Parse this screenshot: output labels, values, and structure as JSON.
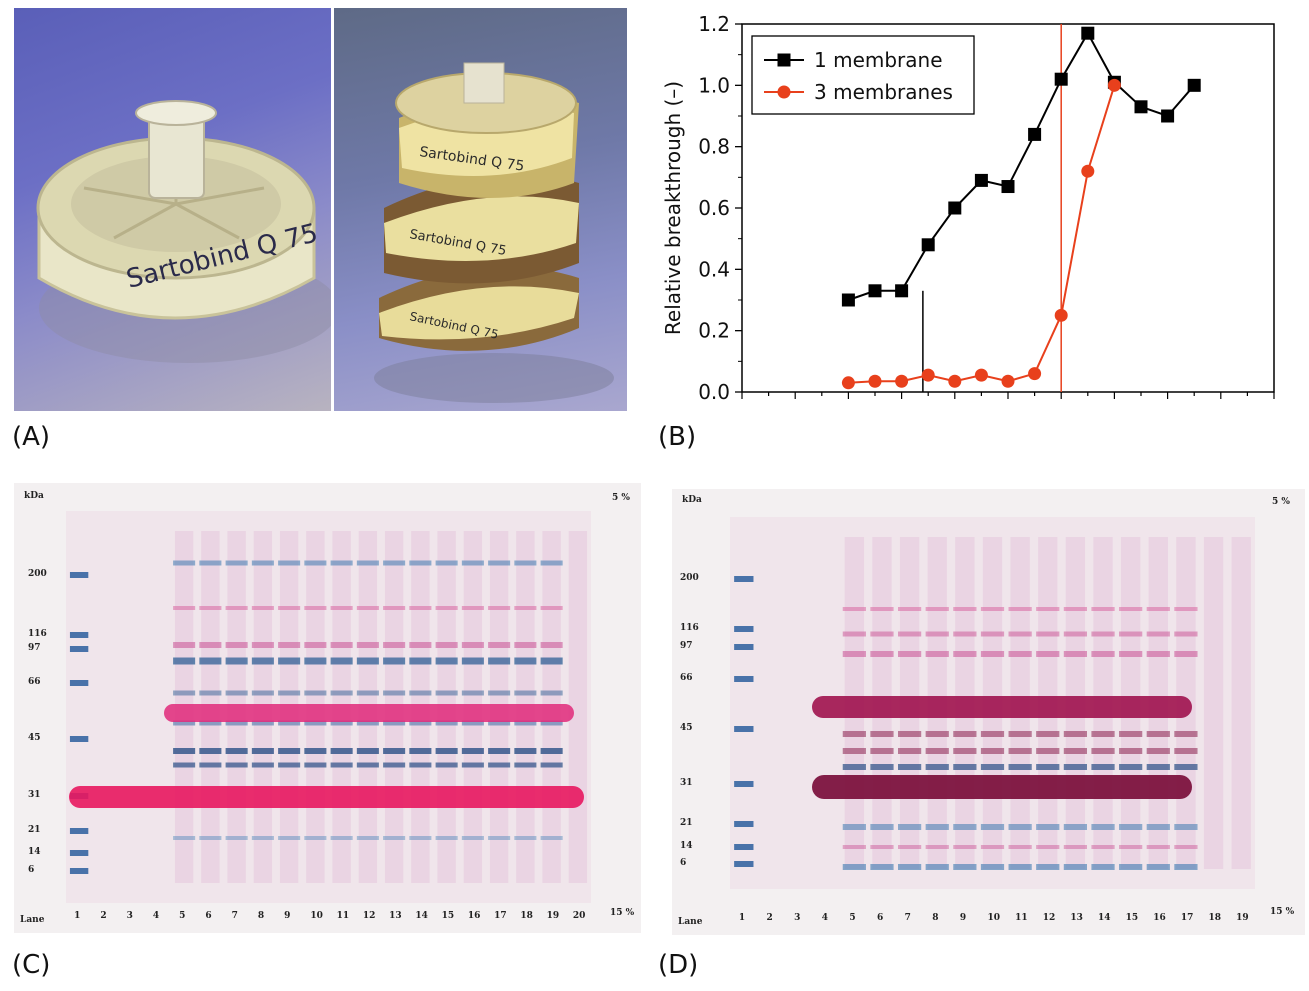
{
  "panels": {
    "a": {
      "label": "(A)",
      "product_text_left": "Sartobind Q 75",
      "product_text_right": [
        "Sartobind Q 75",
        "Sartobind Q 75",
        "Sartobind Q 75"
      ]
    },
    "b": {
      "label": "(B)"
    },
    "c": {
      "label": "(C)",
      "kda_label": "kDa",
      "top_pct": "5 %",
      "bottom_pct": "15 %",
      "lane_title": "Lane",
      "mw_markers": [
        "200",
        "116",
        "97",
        "66",
        "45",
        "31",
        "21",
        "14",
        "6"
      ],
      "lanes": [
        "1",
        "2",
        "3",
        "4",
        "5",
        "6",
        "7",
        "8",
        "9",
        "10",
        "11",
        "12",
        "13",
        "14",
        "15",
        "16",
        "17",
        "18",
        "19",
        "20"
      ]
    },
    "d": {
      "label": "(D)",
      "kda_label": "kDa",
      "top_pct": "5 %",
      "bottom_pct": "15 %",
      "lane_title": "Lane",
      "mw_markers": [
        "200",
        "116",
        "97",
        "66",
        "45",
        "31",
        "21",
        "14",
        "6"
      ],
      "lanes": [
        "1",
        "2",
        "3",
        "4",
        "5",
        "6",
        "7",
        "8",
        "9",
        "10",
        "11",
        "12",
        "13",
        "14",
        "15",
        "16",
        "17",
        "18",
        "19"
      ]
    }
  },
  "colors": {
    "series1": "#000000",
    "series2": "#e8401c",
    "gel_pink": "#d63f86",
    "gel_blue": "#2c5e9e"
  },
  "chart_data": {
    "type": "line",
    "title": "",
    "xlabel": "",
    "ylabel": "Relative breakthrough (–)",
    "ylim": [
      0,
      1.2
    ],
    "yticks": [
      "0.0",
      "0.2",
      "0.4",
      "0.6",
      "0.8",
      "1.0",
      "1.2"
    ],
    "xlim": [
      0,
      20
    ],
    "grid": false,
    "legend_position": "top-left",
    "vertical_lines": [
      {
        "x": 6.8,
        "color": "#000000"
      },
      {
        "x": 12.0,
        "color": "#e8401c"
      }
    ],
    "series": [
      {
        "name": "1 membrane",
        "marker": "square",
        "color": "#000000",
        "x": [
          4.0,
          5.0,
          6.0,
          7.0,
          8.0,
          9.0,
          10.0,
          11.0,
          12.0,
          13.0,
          14.0,
          15.0,
          16.0,
          17.0,
          18.0
        ],
        "y": [
          0.3,
          0.33,
          0.33,
          0.48,
          0.6,
          0.69,
          0.67,
          0.84,
          1.02,
          1.17,
          1.01,
          0.93,
          0.9,
          1.0,
          null
        ]
      },
      {
        "name": "3 membranes",
        "marker": "circle",
        "color": "#e8401c",
        "x": [
          4.0,
          5.0,
          6.0,
          7.0,
          8.0,
          9.0,
          10.0,
          11.0,
          12.0,
          13.0,
          14.0,
          15.0,
          16.0
        ],
        "y": [
          0.03,
          0.035,
          0.035,
          0.055,
          0.035,
          0.055,
          0.035,
          0.06,
          0.25,
          0.72,
          1.0,
          null,
          null
        ]
      }
    ]
  }
}
